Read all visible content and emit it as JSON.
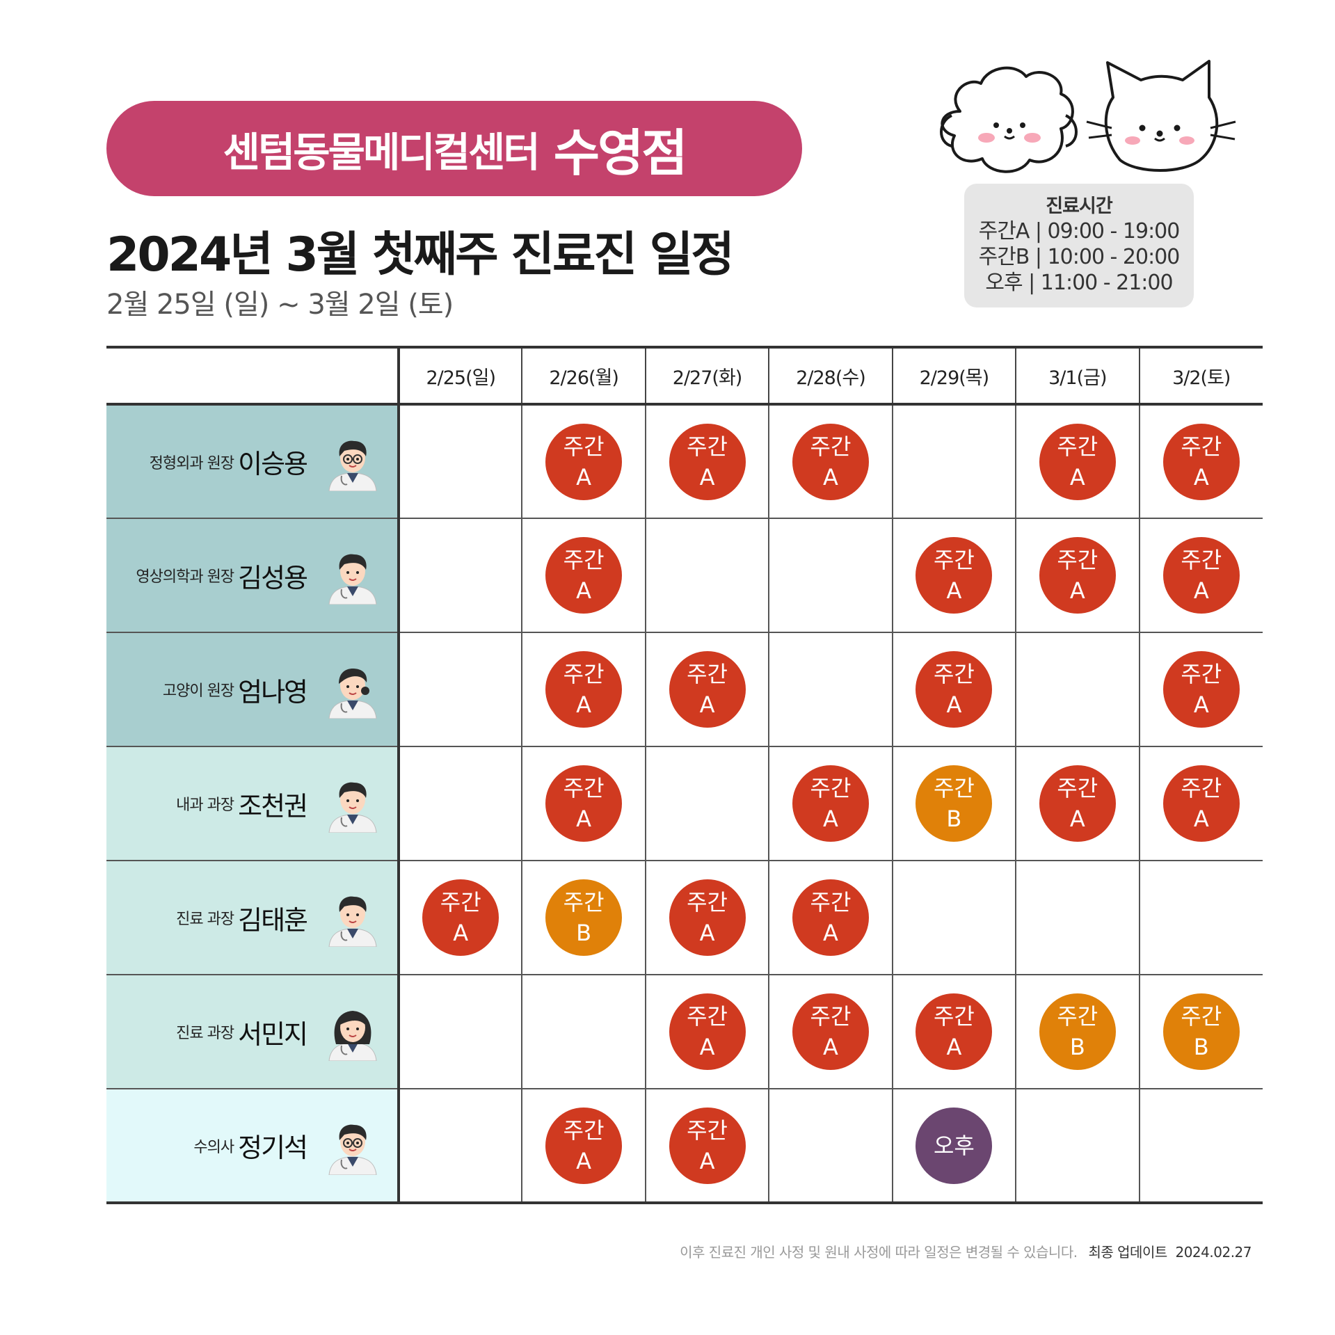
{
  "header": {
    "center_name": "센텀동물메디컬센터",
    "branch_name": "수영점",
    "title": "2024년 3월 첫째주 진료진 일정",
    "date_range": "2월 25일 (일) ~ 3월 2일 (토)"
  },
  "hours": {
    "title": "진료시간",
    "lines": [
      "주간A | 09:00 - 19:00",
      "주간B | 10:00 - 20:00",
      "오후 | 11:00 - 21:00"
    ]
  },
  "colors": {
    "banner": "#c4426c",
    "shift_a": "#d03a20",
    "shift_b": "#e08109",
    "shift_pm": "#6b4670",
    "row_director": "#a8cecf",
    "row_manager": "#cdeae6",
    "row_vet": "#e2f9fa"
  },
  "schedule": {
    "days": [
      "2/25(일)",
      "2/26(월)",
      "2/27(화)",
      "2/28(수)",
      "2/29(목)",
      "3/1(금)",
      "3/2(토)"
    ],
    "doctors": [
      {
        "role": "정형외과 원장",
        "name": "이승용",
        "avatar": "doctor-glasses-avatar-icon",
        "cells": [
          null,
          [
            "주간",
            "A"
          ],
          [
            "주간",
            "A"
          ],
          [
            "주간",
            "A"
          ],
          null,
          [
            "주간",
            "A"
          ],
          [
            "주간",
            "A"
          ]
        ]
      },
      {
        "role": "영상의학과 원장",
        "name": "김성용",
        "avatar": "doctor-smile-avatar-icon",
        "cells": [
          null,
          [
            "주간",
            "A"
          ],
          null,
          null,
          [
            "주간",
            "A"
          ],
          [
            "주간",
            "A"
          ],
          [
            "주간",
            "A"
          ]
        ]
      },
      {
        "role": "고양이 원장",
        "name": "엄나영",
        "avatar": "doctor-female-avatar-icon",
        "cells": [
          null,
          [
            "주간",
            "A"
          ],
          [
            "주간",
            "A"
          ],
          null,
          [
            "주간",
            "A"
          ],
          null,
          [
            "주간",
            "A"
          ]
        ]
      },
      {
        "role": "내과 과장",
        "name": "조천권",
        "avatar": "doctor-male-avatar-icon",
        "cells": [
          null,
          [
            "주간",
            "A"
          ],
          null,
          [
            "주간",
            "A"
          ],
          [
            "주간",
            "B"
          ],
          [
            "주간",
            "A"
          ],
          [
            "주간",
            "A"
          ]
        ]
      },
      {
        "role": "진료 과장",
        "name": "김태훈",
        "avatar": "doctor-male-avatar-icon",
        "cells": [
          [
            "주간",
            "A"
          ],
          [
            "주간",
            "B"
          ],
          [
            "주간",
            "A"
          ],
          [
            "주간",
            "A"
          ],
          null,
          null,
          null
        ]
      },
      {
        "role": "진료 과장",
        "name": "서민지",
        "avatar": "doctor-female-longhair-avatar-icon",
        "cells": [
          null,
          null,
          [
            "주간",
            "A"
          ],
          [
            "주간",
            "A"
          ],
          [
            "주간",
            "A"
          ],
          [
            "주간",
            "B"
          ],
          [
            "주간",
            "B"
          ]
        ]
      },
      {
        "role": "수의사",
        "name": "정기석",
        "avatar": "doctor-glasses-avatar-icon",
        "cells": [
          null,
          [
            "주간",
            "A"
          ],
          [
            "주간",
            "A"
          ],
          null,
          [
            "오후"
          ],
          null,
          null
        ]
      }
    ]
  },
  "footer": {
    "notice": "이후 진료진 개인 사정 및 원내 사정에 따라 일정은 변경될 수 있습니다.",
    "update_label": "최종 업데이트",
    "update_date": "2024.02.27"
  }
}
